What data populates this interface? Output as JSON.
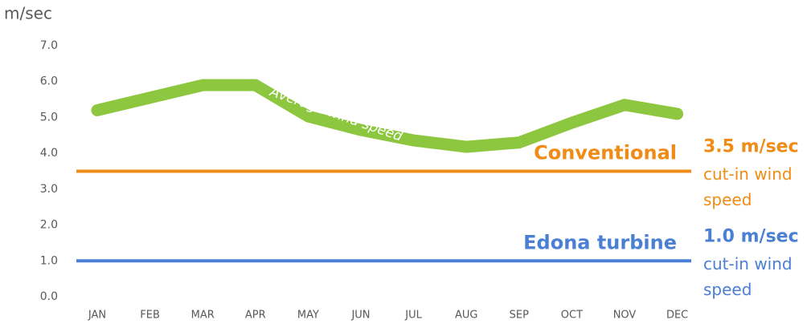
{
  "chart_data": {
    "type": "line",
    "y_label": "m/sec",
    "categories": [
      "JAN",
      "FEB",
      "MAR",
      "APR",
      "MAY",
      "JUN",
      "JUL",
      "AUG",
      "SEP",
      "OCT",
      "NOV",
      "DEC"
    ],
    "series": [
      {
        "name": "Average wind speed",
        "color": "#8dc63f",
        "values": [
          5.2,
          5.55,
          5.9,
          5.9,
          5.03,
          4.65,
          4.36,
          4.18,
          4.3,
          4.85,
          5.35,
          5.1
        ]
      }
    ],
    "ylim": [
      0,
      7
    ],
    "yticks": [
      {
        "value": 0,
        "label": "0.0"
      },
      {
        "value": 1,
        "label": "1.0"
      },
      {
        "value": 2,
        "label": "2.0"
      },
      {
        "value": 3,
        "label": "3.0"
      },
      {
        "value": 4,
        "label": "4.0"
      },
      {
        "value": 5,
        "label": "5.0"
      },
      {
        "value": 6,
        "label": "6.0"
      },
      {
        "value": 7,
        "label": "7.0"
      }
    ],
    "grid": false,
    "reference_lines": [
      {
        "name": "Conventional",
        "value": 3.5,
        "value_label": "3.5 m/sec",
        "note": [
          "cut-in wind",
          "speed"
        ],
        "color": "#ee8c17"
      },
      {
        "name": "Edona turbine",
        "value": 1.0,
        "value_label": "1.0 m/sec",
        "note": [
          "cut-in wind",
          "speed"
        ],
        "color": "#4a7fd4"
      }
    ]
  }
}
